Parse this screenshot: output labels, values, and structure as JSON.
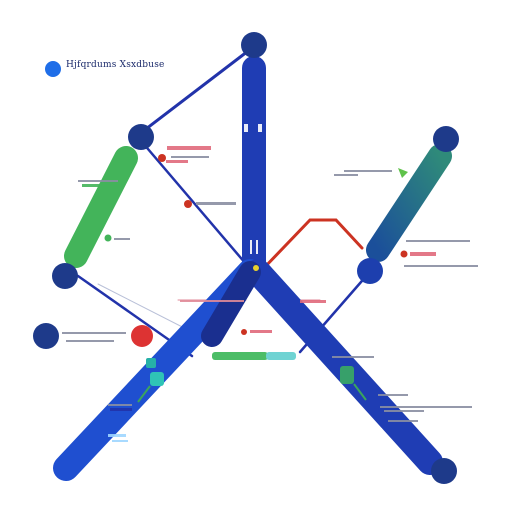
{
  "colors": {
    "trunk": "#1f3db4",
    "trunk_dark": "#1a2f8f",
    "node": "#1e3a8a",
    "green": "#43b45a",
    "teal_a": "#2f7f86",
    "teal_b": "#1b5e8f",
    "red": "#cc3322",
    "pink": "#e06a7c",
    "connector": "#2233aa",
    "label_grey": "#8a8fa3",
    "legend_dot": "#1f6ee8"
  },
  "legend": {
    "text": "Hjfqrdums Xsxdbuse",
    "icon": "circle-marker"
  }
}
